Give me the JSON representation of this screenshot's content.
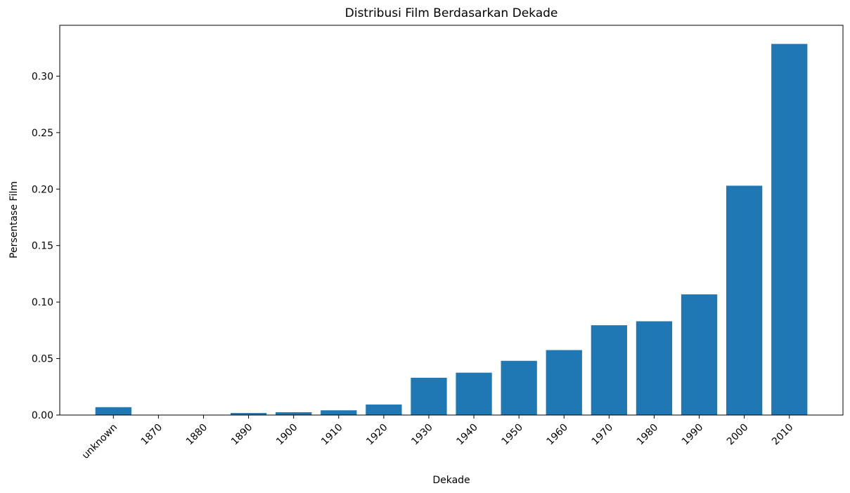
{
  "chart_data": {
    "type": "bar",
    "title": "Distribusi Film Berdasarkan Dekade",
    "xlabel": "Dekade",
    "ylabel": "Persentase Film",
    "categories": [
      "unknown",
      "1870",
      "1880",
      "1890",
      "1900",
      "1910",
      "1920",
      "1930",
      "1940",
      "1950",
      "1960",
      "1970",
      "1980",
      "1990",
      "2000",
      "2010"
    ],
    "values": [
      0.007,
      0.0001,
      0.0002,
      0.0018,
      0.0025,
      0.0042,
      0.0093,
      0.033,
      0.0375,
      0.048,
      0.0575,
      0.0795,
      0.083,
      0.1068,
      0.203,
      0.3285
    ],
    "ylim": [
      0,
      0.345
    ],
    "yticks": [
      "0.00",
      "0.05",
      "0.10",
      "0.15",
      "0.20",
      "0.25",
      "0.30"
    ],
    "grid": false,
    "bar_color": "#1f77b4"
  }
}
